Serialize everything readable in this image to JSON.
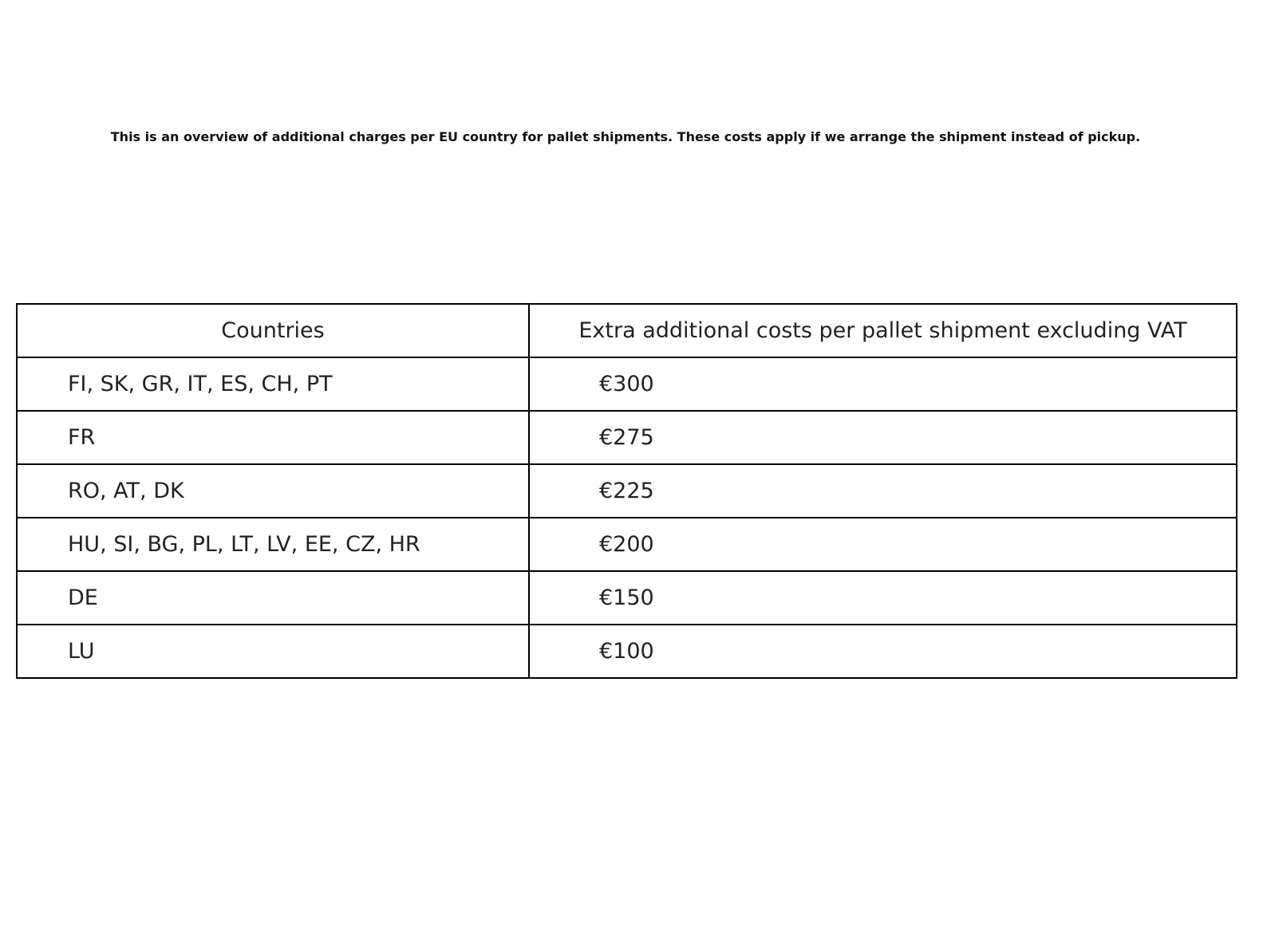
{
  "chart_data": {
    "type": "table",
    "title": "This is an overview of additional charges per EU country for pallet shipments. These costs apply if we arrange the shipment instead of pickup.",
    "columns": [
      "Countries",
      "Extra additional costs per pallet shipment excluding VAT"
    ],
    "rows": [
      [
        "FI, SK, GR, IT, ES, CH, PT",
        "€300"
      ],
      [
        "FR",
        "€275"
      ],
      [
        "RO, AT, DK",
        "€225"
      ],
      [
        "HU, SI, BG, PL, LT, LV, EE, CZ, HR",
        "€200"
      ],
      [
        "DE",
        "€150"
      ],
      [
        "LU",
        "€100"
      ]
    ]
  }
}
